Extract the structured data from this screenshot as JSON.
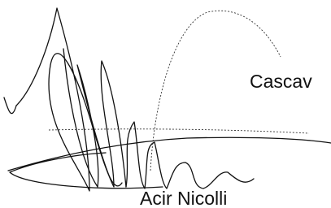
{
  "signature": {
    "location": "Cascav",
    "name": "Acir Nicolli"
  }
}
